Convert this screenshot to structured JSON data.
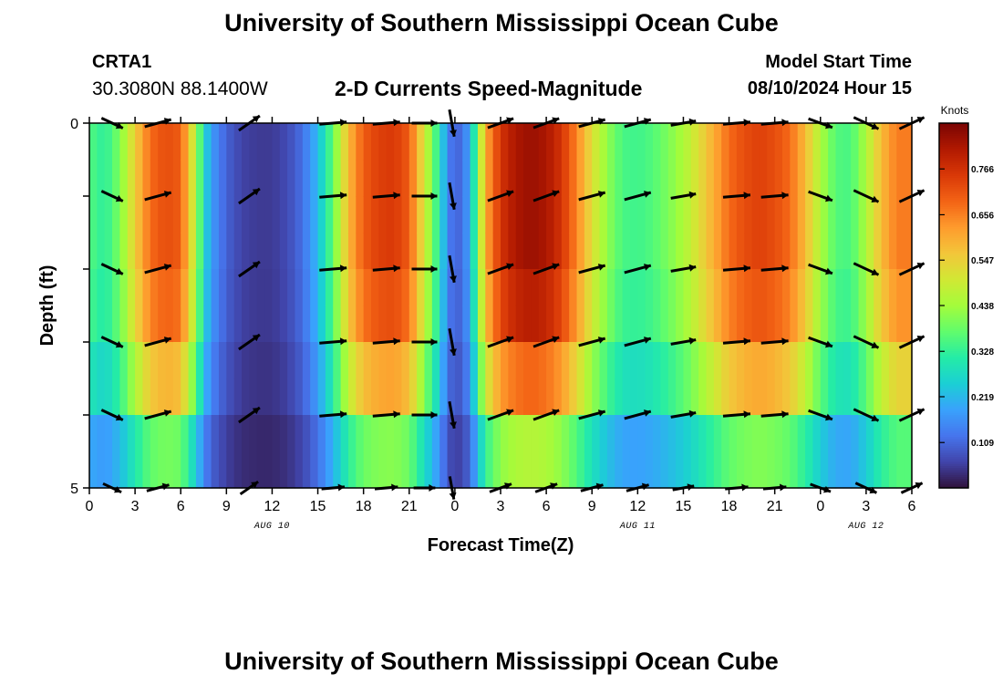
{
  "header": {
    "title": "University of Southern Mississippi Ocean Cube",
    "station_id": "CRTA1",
    "station_coords": "30.3080N  88.1400W",
    "chart_title": "2-D Currents Speed-Magnitude",
    "model_start_label": "Model Start Time",
    "model_start_value": "08/10/2024 Hour 15"
  },
  "footer": {
    "title": "University of Southern Mississippi Ocean Cube"
  },
  "chart_data": {
    "type": "heatmap",
    "xlabel": "Forecast Time(Z)",
    "ylabel": "Depth (ft)",
    "x_ticks": [
      "0",
      "3",
      "6",
      "9",
      "12",
      "15",
      "18",
      "21",
      "0",
      "3",
      "6",
      "9",
      "12",
      "15",
      "18",
      "21",
      "0",
      "3",
      "6"
    ],
    "date_labels": [
      {
        "label": "AUG 10",
        "at_tick": 4
      },
      {
        "label": "AUG 11",
        "at_tick": 12
      },
      {
        "label": "AUG 12",
        "at_tick": 17
      }
    ],
    "y_ticks": [
      "0",
      "5"
    ],
    "ylim": [
      0,
      5
    ],
    "x_hours": 54,
    "depth_levels": 5,
    "colorbar": {
      "label": "Knots",
      "min": 0,
      "max": 0.876,
      "ticks": [
        "0.109",
        "0.219",
        "0.328",
        "0.438",
        "0.547",
        "0.656",
        "0.766"
      ],
      "tick_values": [
        0.109,
        0.219,
        0.328,
        0.438,
        0.547,
        0.656,
        0.766
      ],
      "colors": [
        "#30123b",
        "#4145ab",
        "#4675ed",
        "#39a2fc",
        "#1bcfd4",
        "#24eca6",
        "#61fc6c",
        "#a4fc3b",
        "#d1e834",
        "#f3c63a",
        "#fe9b2d",
        "#f36315",
        "#d93807",
        "#b11901",
        "#7a0403"
      ]
    },
    "speed_profile": {
      "hours": [
        0,
        1,
        2,
        3,
        4,
        5,
        6,
        7,
        7.5,
        8,
        9,
        10,
        11,
        12,
        13,
        14,
        15,
        16,
        17,
        18,
        19,
        20,
        21,
        22,
        23,
        23.5,
        24,
        24.5,
        25,
        25.5,
        26,
        27,
        28,
        29,
        30,
        31,
        32,
        33,
        34,
        35,
        36,
        37,
        38,
        39,
        40,
        41,
        42,
        43,
        44,
        45,
        46,
        47,
        48,
        49,
        50,
        51,
        52,
        53,
        54
      ],
      "speed_knots": [
        0.36,
        0.32,
        0.4,
        0.55,
        0.68,
        0.72,
        0.7,
        0.45,
        0.28,
        0.18,
        0.1,
        0.06,
        0.05,
        0.05,
        0.07,
        0.12,
        0.22,
        0.38,
        0.58,
        0.7,
        0.74,
        0.75,
        0.7,
        0.5,
        0.3,
        0.15,
        0.1,
        0.12,
        0.2,
        0.4,
        0.6,
        0.76,
        0.82,
        0.84,
        0.82,
        0.76,
        0.65,
        0.52,
        0.42,
        0.35,
        0.34,
        0.36,
        0.4,
        0.45,
        0.52,
        0.6,
        0.68,
        0.72,
        0.74,
        0.72,
        0.68,
        0.58,
        0.45,
        0.36,
        0.35,
        0.45,
        0.58,
        0.66,
        0.66
      ]
    },
    "depth_factor": [
      1.0,
      1.0,
      0.96,
      0.82,
      0.55
    ],
    "vectors": {
      "hours": [
        1.5,
        4.5,
        10.5,
        16,
        19.5,
        22,
        23.8,
        27,
        30,
        33,
        36,
        39,
        42.5,
        45,
        48,
        51,
        54
      ],
      "angle_deg": [
        -25,
        15,
        35,
        5,
        5,
        0,
        -80,
        20,
        20,
        15,
        15,
        10,
        5,
        5,
        -20,
        -25,
        25
      ],
      "length_px": [
        26,
        30,
        28,
        30,
        30,
        28,
        30,
        30,
        30,
        30,
        30,
        28,
        30,
        30,
        28,
        30,
        30
      ]
    }
  }
}
